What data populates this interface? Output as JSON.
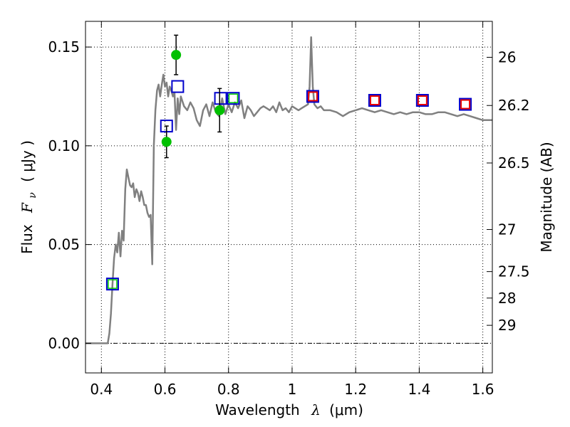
{
  "chart_data": {
    "type": "scatter",
    "title": "",
    "xlabel": {
      "prefix": "Wavelength",
      "symbol": "λ",
      "units": "(μm)"
    },
    "ylabel": {
      "prefix": "Flux",
      "symbol": "F",
      "subscript": "ν",
      "units": "( μJy )"
    },
    "y2label": "Magnitude (AB)",
    "xlim": [
      0.35,
      1.63
    ],
    "ylim": [
      -0.015,
      0.163
    ],
    "x_ticks": [
      0.4,
      0.6,
      0.8,
      1.0,
      1.2,
      1.4,
      1.6
    ],
    "x_tick_labels": [
      "0.4",
      "0.6",
      "0.8",
      "1",
      "1.2",
      "1.4",
      "1.6"
    ],
    "y_ticks": [
      0.0,
      0.05,
      0.1,
      0.15
    ],
    "y_tick_labels": [
      "0.00",
      "0.05",
      "0.10",
      "0.15"
    ],
    "y2_ticks": [
      {
        "label": "26",
        "flux": 0.1448
      },
      {
        "label": "26.2",
        "flux": 0.1204
      },
      {
        "label": "26.5",
        "flux": 0.0913
      },
      {
        "label": "27",
        "flux": 0.0576
      },
      {
        "label": "27.5",
        "flux": 0.0363
      },
      {
        "label": "28",
        "flux": 0.0229
      },
      {
        "label": "29",
        "flux": 0.0091
      }
    ],
    "grid": true,
    "zero_line": true,
    "colors": {
      "model": "#808080",
      "photometry": "#00c000",
      "model_band": "#0000cc",
      "inner_box": "#e60000",
      "inner_box_blue": "#00cc00",
      "errorbar": "#000000"
    },
    "series": [
      {
        "kind": "spectrum",
        "x": [
          0.35,
          0.42,
          0.425,
          0.43,
          0.435,
          0.44,
          0.445,
          0.45,
          0.455,
          0.46,
          0.465,
          0.47,
          0.475,
          0.48,
          0.485,
          0.49,
          0.495,
          0.5,
          0.505,
          0.51,
          0.515,
          0.52,
          0.525,
          0.53,
          0.535,
          0.54,
          0.545,
          0.55,
          0.555,
          0.56,
          0.565,
          0.57,
          0.575,
          0.58,
          0.585,
          0.59,
          0.595,
          0.6,
          0.605,
          0.61,
          0.615,
          0.62,
          0.625,
          0.63,
          0.635,
          0.64,
          0.645,
          0.65,
          0.66,
          0.67,
          0.68,
          0.69,
          0.7,
          0.71,
          0.72,
          0.73,
          0.74,
          0.75,
          0.76,
          0.77,
          0.78,
          0.79,
          0.8,
          0.81,
          0.82,
          0.83,
          0.84,
          0.85,
          0.86,
          0.87,
          0.88,
          0.89,
          0.9,
          0.91,
          0.92,
          0.93,
          0.94,
          0.95,
          0.96,
          0.97,
          0.98,
          0.99,
          1.0,
          1.01,
          1.02,
          1.03,
          1.04,
          1.05,
          1.055,
          1.06,
          1.065,
          1.07,
          1.08,
          1.09,
          1.1,
          1.12,
          1.14,
          1.16,
          1.18,
          1.2,
          1.22,
          1.24,
          1.26,
          1.28,
          1.3,
          1.32,
          1.34,
          1.36,
          1.38,
          1.4,
          1.42,
          1.44,
          1.46,
          1.48,
          1.5,
          1.52,
          1.54,
          1.56,
          1.58,
          1.6,
          1.63
        ],
        "y": [
          0.0,
          0.0,
          0.005,
          0.015,
          0.03,
          0.043,
          0.05,
          0.046,
          0.056,
          0.044,
          0.057,
          0.052,
          0.078,
          0.088,
          0.084,
          0.08,
          0.079,
          0.081,
          0.074,
          0.078,
          0.076,
          0.072,
          0.077,
          0.074,
          0.07,
          0.07,
          0.066,
          0.064,
          0.065,
          0.04,
          0.1,
          0.118,
          0.128,
          0.131,
          0.125,
          0.131,
          0.136,
          0.13,
          0.132,
          0.125,
          0.13,
          0.128,
          0.125,
          0.127,
          0.108,
          0.124,
          0.116,
          0.125,
          0.12,
          0.118,
          0.122,
          0.119,
          0.113,
          0.11,
          0.118,
          0.121,
          0.115,
          0.122,
          0.117,
          0.115,
          0.124,
          0.116,
          0.121,
          0.117,
          0.122,
          0.119,
          0.123,
          0.114,
          0.12,
          0.118,
          0.115,
          0.117,
          0.119,
          0.12,
          0.119,
          0.118,
          0.12,
          0.117,
          0.122,
          0.118,
          0.119,
          0.117,
          0.12,
          0.119,
          0.118,
          0.119,
          0.12,
          0.121,
          0.13,
          0.155,
          0.13,
          0.121,
          0.119,
          0.12,
          0.118,
          0.118,
          0.117,
          0.115,
          0.117,
          0.118,
          0.119,
          0.118,
          0.117,
          0.118,
          0.117,
          0.116,
          0.117,
          0.116,
          0.117,
          0.117,
          0.116,
          0.116,
          0.117,
          0.117,
          0.116,
          0.115,
          0.116,
          0.115,
          0.114,
          0.113,
          0.113
        ]
      },
      {
        "kind": "model_photometry",
        "x": [
          0.435,
          0.605,
          0.64,
          0.775,
          0.815,
          1.065,
          1.26,
          1.41,
          1.545
        ],
        "y": [
          0.03,
          0.11,
          0.13,
          0.124,
          0.124,
          0.125,
          0.123,
          0.123,
          0.121
        ],
        "inner": [
          "green",
          "",
          "",
          "",
          "green",
          "red",
          "red",
          "red",
          "red"
        ]
      },
      {
        "kind": "observed_photometry",
        "x": [
          0.605,
          0.635,
          0.772
        ],
        "y": [
          0.102,
          0.146,
          0.118
        ],
        "err": [
          0.008,
          0.01,
          0.011
        ]
      }
    ]
  }
}
